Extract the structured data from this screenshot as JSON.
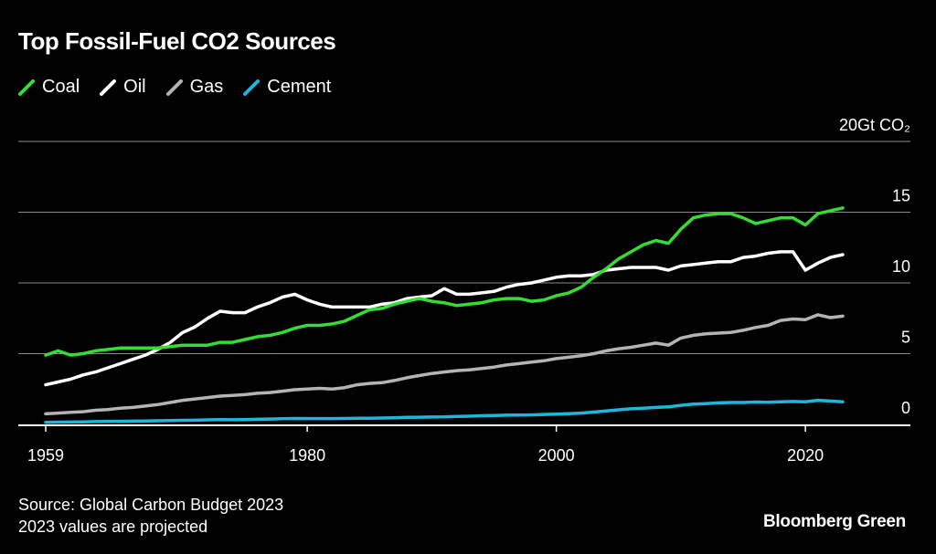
{
  "title": "Top Fossil-Fuel CO2 Sources",
  "footer": {
    "source": "Source: Global Carbon Budget 2023",
    "note": "2023 values are projected",
    "brand": "Bloomberg Green"
  },
  "chart_data": {
    "type": "line",
    "title": "Top Fossil-Fuel CO2 Sources",
    "unit_label": "20Gt CO₂",
    "xlabel": "",
    "ylabel": "",
    "xlim": [
      1959,
      2023
    ],
    "ylim": [
      0,
      20
    ],
    "x_ticks": [
      1959,
      1980,
      2000,
      2020
    ],
    "y_ticks": [
      0,
      5,
      10,
      15,
      20
    ],
    "y_tick_labels": [
      "0",
      "5",
      "10",
      "15",
      "20Gt CO₂"
    ],
    "grid": true,
    "legend_position": "top-left",
    "x": [
      1959,
      1960,
      1961,
      1962,
      1963,
      1964,
      1965,
      1966,
      1967,
      1968,
      1969,
      1970,
      1971,
      1972,
      1973,
      1974,
      1975,
      1976,
      1977,
      1978,
      1979,
      1980,
      1981,
      1982,
      1983,
      1984,
      1985,
      1986,
      1987,
      1988,
      1989,
      1990,
      1991,
      1992,
      1993,
      1994,
      1995,
      1996,
      1997,
      1998,
      1999,
      2000,
      2001,
      2002,
      2003,
      2004,
      2005,
      2006,
      2007,
      2008,
      2009,
      2010,
      2011,
      2012,
      2013,
      2014,
      2015,
      2016,
      2017,
      2018,
      2019,
      2020,
      2021,
      2022,
      2023
    ],
    "series": [
      {
        "name": "Coal",
        "color": "#33dd33",
        "values": [
          4.9,
          5.2,
          4.9,
          5.0,
          5.2,
          5.3,
          5.4,
          5.4,
          5.4,
          5.4,
          5.5,
          5.6,
          5.6,
          5.6,
          5.8,
          5.8,
          6.0,
          6.2,
          6.3,
          6.5,
          6.8,
          7.0,
          7.0,
          7.1,
          7.3,
          7.7,
          8.1,
          8.2,
          8.5,
          8.7,
          8.9,
          8.7,
          8.6,
          8.4,
          8.5,
          8.6,
          8.8,
          8.9,
          8.9,
          8.7,
          8.8,
          9.1,
          9.3,
          9.7,
          10.4,
          11.0,
          11.7,
          12.2,
          12.7,
          13.0,
          12.8,
          13.8,
          14.6,
          14.8,
          14.9,
          14.9,
          14.6,
          14.2,
          14.4,
          14.6,
          14.6,
          14.1,
          14.9,
          15.1,
          15.3
        ]
      },
      {
        "name": "Oil",
        "color": "#ffffff",
        "values": [
          2.8,
          3.0,
          3.2,
          3.5,
          3.7,
          4.0,
          4.3,
          4.6,
          4.9,
          5.3,
          5.8,
          6.5,
          6.9,
          7.5,
          8.0,
          7.9,
          7.9,
          8.3,
          8.6,
          9.0,
          9.2,
          8.8,
          8.5,
          8.3,
          8.3,
          8.3,
          8.3,
          8.5,
          8.6,
          8.9,
          9.0,
          9.1,
          9.6,
          9.2,
          9.2,
          9.3,
          9.4,
          9.7,
          9.9,
          10.0,
          10.2,
          10.4,
          10.5,
          10.5,
          10.6,
          10.9,
          11.0,
          11.1,
          11.1,
          11.1,
          10.9,
          11.2,
          11.3,
          11.4,
          11.5,
          11.5,
          11.8,
          11.9,
          12.1,
          12.2,
          12.2,
          10.9,
          11.4,
          11.8,
          12.0
        ]
      },
      {
        "name": "Gas",
        "color": "#b4b4b4",
        "values": [
          0.75,
          0.8,
          0.85,
          0.9,
          1.0,
          1.05,
          1.15,
          1.2,
          1.3,
          1.4,
          1.55,
          1.7,
          1.8,
          1.9,
          2.0,
          2.05,
          2.1,
          2.2,
          2.25,
          2.35,
          2.45,
          2.5,
          2.55,
          2.5,
          2.6,
          2.8,
          2.9,
          2.95,
          3.1,
          3.3,
          3.45,
          3.6,
          3.7,
          3.8,
          3.85,
          3.95,
          4.05,
          4.2,
          4.3,
          4.4,
          4.5,
          4.65,
          4.75,
          4.85,
          5.0,
          5.2,
          5.35,
          5.45,
          5.6,
          5.75,
          5.6,
          6.1,
          6.3,
          6.4,
          6.45,
          6.5,
          6.65,
          6.85,
          7.0,
          7.35,
          7.45,
          7.4,
          7.75,
          7.55,
          7.65
        ]
      },
      {
        "name": "Cement",
        "color": "#1fb6dc",
        "values": [
          0.15,
          0.16,
          0.17,
          0.18,
          0.2,
          0.21,
          0.22,
          0.23,
          0.24,
          0.26,
          0.27,
          0.29,
          0.3,
          0.32,
          0.34,
          0.33,
          0.34,
          0.36,
          0.38,
          0.4,
          0.42,
          0.41,
          0.41,
          0.41,
          0.42,
          0.43,
          0.44,
          0.45,
          0.47,
          0.5,
          0.51,
          0.52,
          0.53,
          0.56,
          0.58,
          0.61,
          0.63,
          0.65,
          0.66,
          0.67,
          0.7,
          0.73,
          0.76,
          0.8,
          0.87,
          0.95,
          1.03,
          1.1,
          1.15,
          1.2,
          1.24,
          1.35,
          1.43,
          1.47,
          1.52,
          1.55,
          1.55,
          1.58,
          1.57,
          1.6,
          1.62,
          1.6,
          1.7,
          1.65,
          1.6
        ]
      }
    ]
  }
}
